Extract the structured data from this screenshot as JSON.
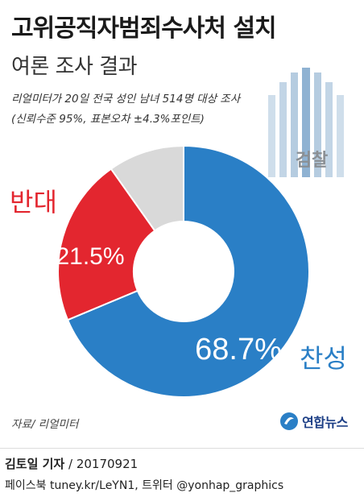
{
  "header": {
    "title": "고위공직자범죄수사처 설치",
    "subtitle": "여론 조사 결과"
  },
  "survey": {
    "line1": "리얼미터가 20일 전국 성인 남녀 514명 대상 조사",
    "line2": "(신뢰수준 95%, 표본오차 ±4.3%포인트)"
  },
  "logo": {
    "label": "검찰",
    "icon": "prosecution-logo-icon"
  },
  "source": "자료/ 리얼미터",
  "brand": {
    "name": "연합뉴스",
    "icon": "yonhap-globe-icon"
  },
  "footer": {
    "reporter": "김토일 기자",
    "date": "20170921",
    "social": "페이스북 tuney.kr/LeYN1, 트위터 @yonhap_graphics"
  },
  "colors": {
    "support": "#2a7fc6",
    "oppose": "#e3262f",
    "other": "#d9d9d9",
    "logo_bar": "#a8c3db"
  },
  "chart_data": {
    "type": "pie",
    "donut": true,
    "slices": [
      {
        "name": "찬성",
        "value": 68.7,
        "label": "68.7%",
        "color": "#2a7fc6"
      },
      {
        "name": "반대",
        "value": 21.5,
        "label": "21.5%",
        "color": "#e3262f"
      },
      {
        "name": "",
        "value": 9.8,
        "label": "",
        "color": "#d9d9d9"
      }
    ],
    "unit": "%",
    "title": "고위공직자범죄수사처 설치",
    "subtitle": "여론 조사 결과"
  }
}
